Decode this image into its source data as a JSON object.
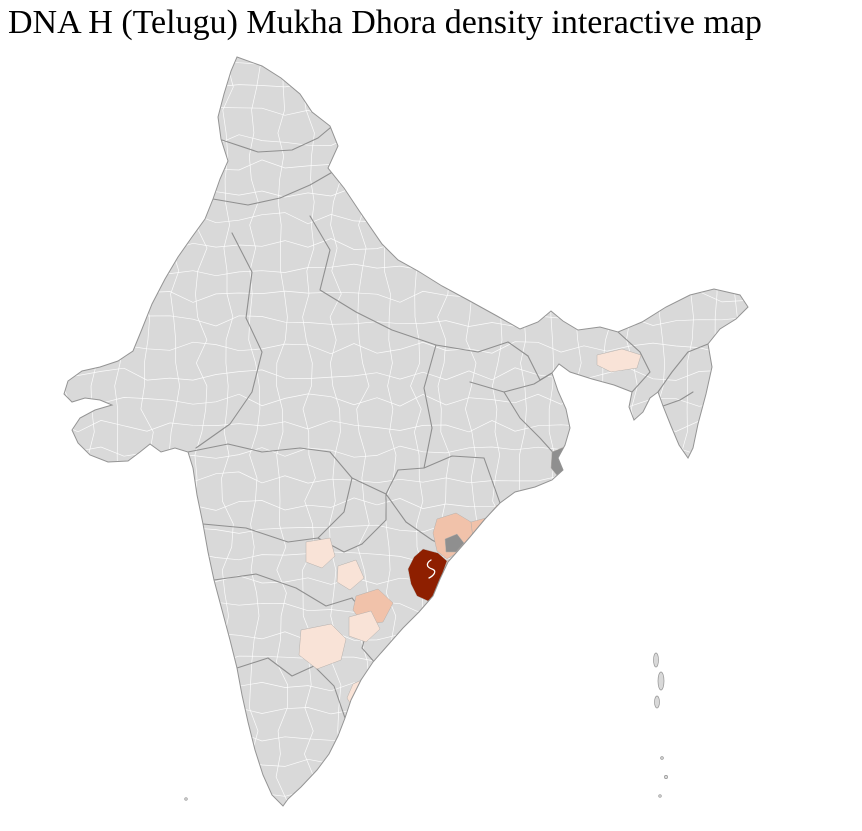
{
  "title": "DNA H (Telugu) Mukha Dhora density interactive map",
  "map": {
    "colors": {
      "background": "#ffffff",
      "land": "#d9d9d9",
      "district_border": "#ffffff",
      "state_border": "#8b8b8b",
      "outline": "#949494",
      "density_high": "#8e1f00",
      "density_medium": "#f1c2aa",
      "density_low": "#f9e3d7",
      "neutral_dark": "#8f8f8f"
    }
  }
}
